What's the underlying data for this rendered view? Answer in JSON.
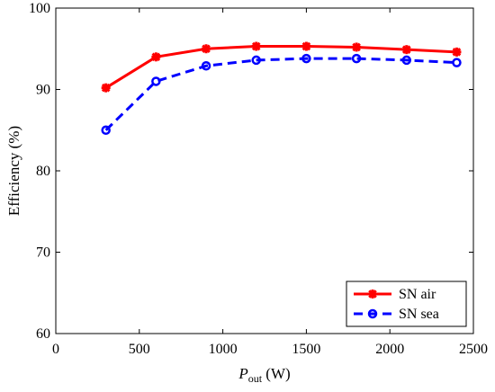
{
  "chart_data": {
    "type": "line",
    "xlabel": "P",
    "xlabel_sub": "out",
    "xlabel_unit": " (W)",
    "ylabel": "Efficiency (%)",
    "xlim": [
      0,
      2500
    ],
    "ylim": [
      60,
      100
    ],
    "xticks": [
      0,
      500,
      1000,
      1500,
      2000,
      2500
    ],
    "yticks": [
      60,
      70,
      80,
      90,
      100
    ],
    "grid": false,
    "legend_position": "bottom-right",
    "x": [
      300,
      600,
      900,
      1200,
      1500,
      1800,
      2100,
      2400
    ],
    "series": [
      {
        "name": "SN air",
        "color": "#ff0000",
        "line": "solid",
        "marker": "asterisk",
        "values": [
          90.2,
          94.0,
          95.0,
          95.3,
          95.3,
          95.2,
          94.9,
          94.6
        ]
      },
      {
        "name": "SN sea",
        "color": "#0000ff",
        "line": "dashed",
        "marker": "circle",
        "values": [
          85.0,
          91.0,
          92.9,
          93.6,
          93.8,
          93.8,
          93.6,
          93.3
        ]
      }
    ]
  }
}
